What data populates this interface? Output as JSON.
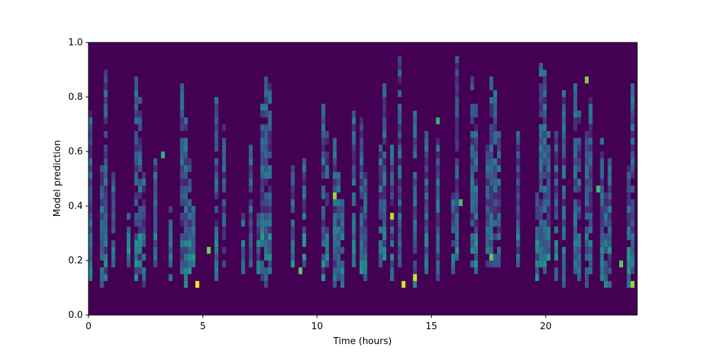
{
  "chart_data": {
    "type": "heatmap",
    "title": "",
    "xlabel": "Time (hours)",
    "ylabel": "Model prediction",
    "xlim": [
      0,
      24
    ],
    "ylim": [
      0,
      1
    ],
    "x_ticks": [
      0,
      5,
      10,
      15,
      20
    ],
    "x_tick_labels": [
      "0",
      "5",
      "10",
      "15",
      "20"
    ],
    "y_ticks": [
      0.0,
      0.2,
      0.4,
      0.6,
      0.8,
      1.0
    ],
    "y_tick_labels": [
      "0.0",
      "0.2",
      "0.4",
      "0.6",
      "0.8",
      "1.0"
    ],
    "colormap": "viridis",
    "background_color": "#440154",
    "grid": false,
    "x_bin_width_hours": 0.167,
    "y_bin_height": 0.025,
    "prediction_floor": 0.1,
    "notable_cells": [
      {
        "time": 4.8,
        "prediction": 0.11,
        "intensity": 1.0
      },
      {
        "time": 13.7,
        "prediction": 0.11,
        "intensity": 0.95
      },
      {
        "time": 14.2,
        "prediction": 0.14,
        "intensity": 0.95
      },
      {
        "time": 13.3,
        "prediction": 0.36,
        "intensity": 0.9
      },
      {
        "time": 10.8,
        "prediction": 0.44,
        "intensity": 0.85
      },
      {
        "time": 23.8,
        "prediction": 0.11,
        "intensity": 0.85
      },
      {
        "time": 21.8,
        "prediction": 0.86,
        "intensity": 0.8
      },
      {
        "time": 5.3,
        "prediction": 0.24,
        "intensity": 0.8
      },
      {
        "time": 17.7,
        "prediction": 0.21,
        "intensity": 0.75
      },
      {
        "time": 9.2,
        "prediction": 0.16,
        "intensity": 0.75
      },
      {
        "time": 22.3,
        "prediction": 0.46,
        "intensity": 0.7
      },
      {
        "time": 23.3,
        "prediction": 0.19,
        "intensity": 0.75
      },
      {
        "time": 16.3,
        "prediction": 0.41,
        "intensity": 0.7
      },
      {
        "time": 15.3,
        "prediction": 0.71,
        "intensity": 0.65
      },
      {
        "time": 3.3,
        "prediction": 0.59,
        "intensity": 0.65
      }
    ]
  }
}
